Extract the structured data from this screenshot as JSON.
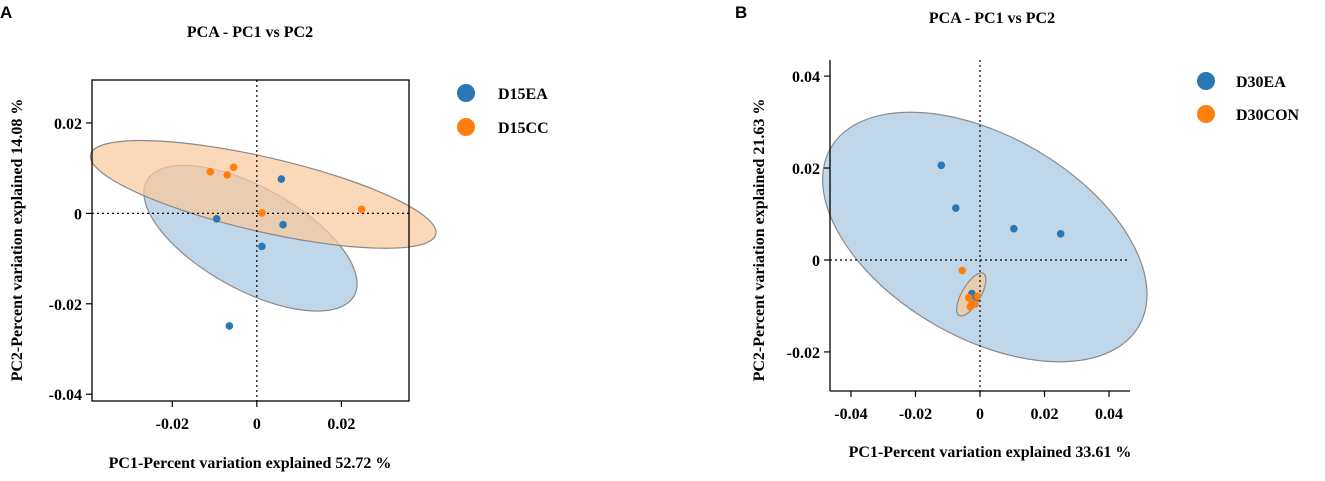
{
  "chart_data": [
    {
      "type": "scatter",
      "panel_label": "A",
      "title": "PCA - PC1 vs PC2",
      "xlabel": "PC1-Percent variation explained 52.72 %",
      "ylabel": "PC2-Percent variation explained 14.08 %",
      "xlim": [
        -0.039,
        0.036
      ],
      "ylim": [
        -0.0415,
        0.0295
      ],
      "xticks": [
        -0.02,
        0,
        0.02
      ],
      "yticks": [
        -0.04,
        -0.02,
        0,
        0.02
      ],
      "xtick_labels": [
        "-0.02",
        "0",
        "0.02"
      ],
      "ytick_labels": [
        "-0.04",
        "-0.02",
        "0",
        "0.02"
      ],
      "legend_position": "right",
      "series": [
        {
          "name": "D15EA",
          "color": "#2878b5",
          "points": [
            [
              -0.0095,
              -0.0012
            ],
            [
              -0.0065,
              -0.0249
            ],
            [
              0.0012,
              -0.0073
            ],
            [
              0.0058,
              0.0076
            ],
            [
              0.0062,
              -0.0025
            ]
          ],
          "ellipse": {
            "center": [
              -0.0015,
              -0.0055
            ],
            "rx": 0.0117,
            "ry": 0.0271,
            "angle": -61
          }
        },
        {
          "name": "D15CC",
          "color": "#ff7f0e",
          "points": [
            [
              -0.011,
              0.0092
            ],
            [
              -0.007,
              0.0085
            ],
            [
              -0.0055,
              0.0102
            ],
            [
              0.0012,
              0.0001
            ],
            [
              0.0248,
              0.0009
            ]
          ],
          "ellipse": {
            "center": [
              0.0015,
              0.0042
            ],
            "rx": 0.0405,
            "ry": 0.0085,
            "angle": 13
          }
        }
      ]
    },
    {
      "type": "scatter",
      "panel_label": "B",
      "title": "PCA - PC1 vs PC2",
      "xlabel": "PC1-Percent variation explained 33.61 %",
      "ylabel": "PC2-Percent variation explained 21.63 %",
      "xlim": [
        -0.0465,
        0.0465
      ],
      "ylim": [
        -0.0285,
        0.0435
      ],
      "xticks": [
        -0.04,
        -0.02,
        0,
        0.02,
        0.04
      ],
      "yticks": [
        -0.02,
        0,
        0.02,
        0.04
      ],
      "xtick_labels": [
        "-0.04",
        "-0.02",
        "0",
        "0.02",
        "0.04"
      ],
      "ytick_labels": [
        "-0.02",
        "0",
        "0.02",
        "0.04"
      ],
      "legend_position": "right",
      "series": [
        {
          "name": "D30EA",
          "color": "#2878b5",
          "points": [
            [
              -0.012,
              0.0206
            ],
            [
              -0.0075,
              0.0113
            ],
            [
              0.0105,
              0.0068
            ],
            [
              0.025,
              0.0057
            ],
            [
              -0.0025,
              -0.0073
            ],
            [
              -0.0015,
              -0.0085
            ]
          ],
          "ellipse": {
            "center": [
              0.0015,
              0.005
            ],
            "rx": 0.0455,
            "ry": 0.0258,
            "angle": 30
          }
        },
        {
          "name": "D30CON",
          "color": "#ff7f0e",
          "points": [
            [
              -0.0055,
              -0.0023
            ],
            [
              -0.0035,
              -0.0082
            ],
            [
              -0.0025,
              -0.0093
            ],
            [
              -0.003,
              -0.0102
            ],
            [
              -0.0008,
              -0.0079
            ],
            [
              -0.0015,
              -0.0096
            ]
          ],
          "ellipse": {
            "center": [
              -0.0027,
              -0.0075
            ],
            "rx": 0.0062,
            "ry": 0.0024,
            "angle": -60
          }
        }
      ]
    }
  ]
}
